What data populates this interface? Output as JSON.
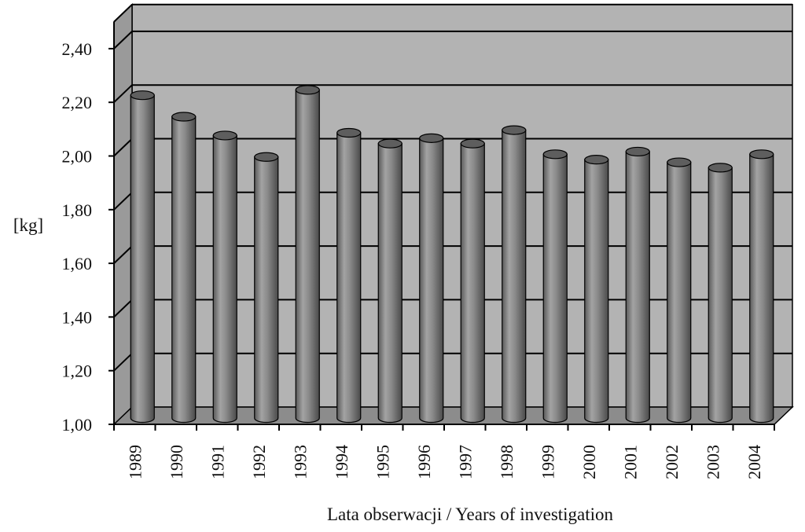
{
  "chart_data": {
    "type": "bar",
    "style": "3d-cylinder",
    "categories": [
      "1989",
      "1990",
      "1991",
      "1992",
      "1993",
      "1994",
      "1995",
      "1996",
      "1997",
      "1998",
      "1999",
      "2000",
      "2001",
      "2002",
      "2003",
      "2004"
    ],
    "values": [
      2.2,
      2.12,
      2.05,
      1.97,
      2.22,
      2.06,
      2.02,
      2.04,
      2.02,
      2.07,
      1.98,
      1.96,
      1.99,
      1.95,
      1.93,
      1.98
    ],
    "title": "",
    "xlabel": "Lata obserwacji / Years of investigation",
    "ylabel": "[kg]",
    "ylim": [
      1.0,
      2.5
    ],
    "yticks": [
      1.0,
      1.2,
      1.4,
      1.6,
      1.8,
      2.0,
      2.2,
      2.4
    ],
    "ytick_labels": [
      "1,00",
      "1,20",
      "1,40",
      "1,60",
      "1,80",
      "2,00",
      "2,20",
      "2,40"
    ],
    "grid": true,
    "legend": "none",
    "colors": {
      "wall": "#b3b3b3",
      "floor": "#8c8c8c",
      "bar": "#7f7f7f",
      "bar_highlight": "#a6a6a6",
      "bar_top": "#5e5e5e",
      "gridline": "#000000"
    }
  }
}
